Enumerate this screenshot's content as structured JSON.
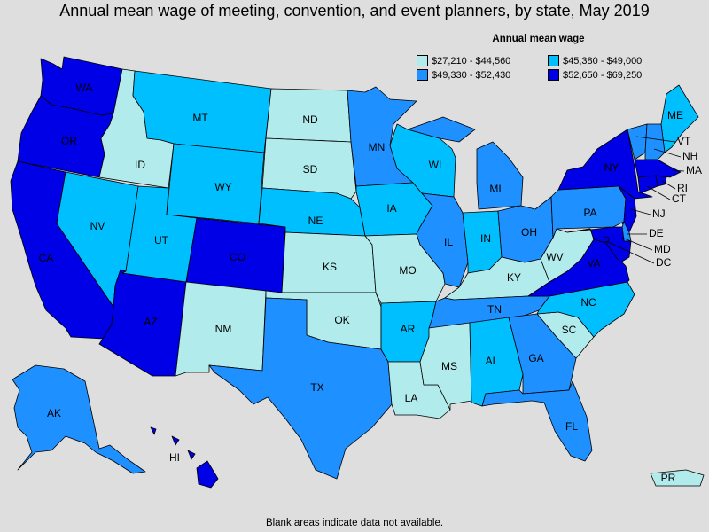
{
  "title": "Annual mean wage of meeting, convention, and event planners, by state, May 2019",
  "footnote": "Blank areas indicate data not available.",
  "legend": {
    "title": "Annual mean wage",
    "items": [
      {
        "label": "$27,210 - $44,560",
        "color": "#b2ebec"
      },
      {
        "label": "$45,380 - $49,000",
        "color": "#00bfff"
      },
      {
        "label": "$49,330 - $52,430",
        "color": "#1e90ff"
      },
      {
        "label": "$52,650 - $69,250",
        "color": "#0000e6"
      }
    ]
  },
  "states": [
    {
      "abbr": "WA",
      "tier": 3
    },
    {
      "abbr": "OR",
      "tier": 3
    },
    {
      "abbr": "CA",
      "tier": 3
    },
    {
      "abbr": "ID",
      "tier": 0
    },
    {
      "abbr": "NV",
      "tier": 1
    },
    {
      "abbr": "AZ",
      "tier": 3
    },
    {
      "abbr": "UT",
      "tier": 1
    },
    {
      "abbr": "MT",
      "tier": 1
    },
    {
      "abbr": "WY",
      "tier": 1
    },
    {
      "abbr": "CO",
      "tier": 3
    },
    {
      "abbr": "NM",
      "tier": 0
    },
    {
      "abbr": "ND",
      "tier": 0
    },
    {
      "abbr": "SD",
      "tier": 0
    },
    {
      "abbr": "NE",
      "tier": 1
    },
    {
      "abbr": "KS",
      "tier": 0
    },
    {
      "abbr": "OK",
      "tier": 0
    },
    {
      "abbr": "TX",
      "tier": 2
    },
    {
      "abbr": "MN",
      "tier": 2
    },
    {
      "abbr": "IA",
      "tier": 1
    },
    {
      "abbr": "MO",
      "tier": 0
    },
    {
      "abbr": "AR",
      "tier": 1
    },
    {
      "abbr": "LA",
      "tier": 0
    },
    {
      "abbr": "WI",
      "tier": 1
    },
    {
      "abbr": "IL",
      "tier": 2
    },
    {
      "abbr": "MI",
      "tier": 2
    },
    {
      "abbr": "IN",
      "tier": 1
    },
    {
      "abbr": "OH",
      "tier": 2
    },
    {
      "abbr": "KY",
      "tier": 0
    },
    {
      "abbr": "TN",
      "tier": 2
    },
    {
      "abbr": "MS",
      "tier": 0
    },
    {
      "abbr": "AL",
      "tier": 1
    },
    {
      "abbr": "GA",
      "tier": 2
    },
    {
      "abbr": "FL",
      "tier": 2
    },
    {
      "abbr": "SC",
      "tier": 0
    },
    {
      "abbr": "NC",
      "tier": 1
    },
    {
      "abbr": "VA",
      "tier": 3
    },
    {
      "abbr": "WV",
      "tier": 0
    },
    {
      "abbr": "PA",
      "tier": 2
    },
    {
      "abbr": "NY",
      "tier": 3
    },
    {
      "abbr": "ME",
      "tier": 1
    },
    {
      "abbr": "VT",
      "tier": 2
    },
    {
      "abbr": "NH",
      "tier": 2
    },
    {
      "abbr": "MA",
      "tier": 3
    },
    {
      "abbr": "CT",
      "tier": 3
    },
    {
      "abbr": "RI",
      "tier": 3
    },
    {
      "abbr": "NJ",
      "tier": 3
    },
    {
      "abbr": "DE",
      "tier": 2
    },
    {
      "abbr": "MD",
      "tier": 3
    },
    {
      "abbr": "DC",
      "tier": 3
    },
    {
      "abbr": "AK",
      "tier": 2
    },
    {
      "abbr": "HI",
      "tier": 3
    },
    {
      "abbr": "PR",
      "tier": 0
    }
  ]
}
